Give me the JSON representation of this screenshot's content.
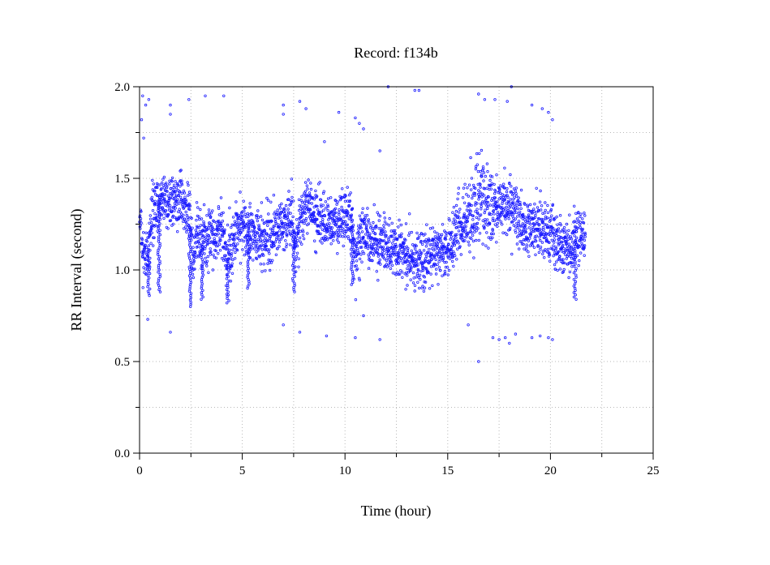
{
  "chart_data": {
    "type": "scatter",
    "title": "Record:  f134b",
    "xlabel": "Time (hour)",
    "ylabel": "RR Interval (second)",
    "xlim": [
      0,
      25
    ],
    "ylim": [
      0.0,
      2.0
    ],
    "x_ticks": [
      "0",
      "5",
      "10",
      "15",
      "20",
      "25"
    ],
    "y_ticks": [
      "0.0",
      "0.5",
      "1.0",
      "1.5",
      "2.0"
    ],
    "grid": true,
    "marker": "open-circle",
    "series_color": "#1a1aff",
    "profile": [
      [
        0.0,
        1.28
      ],
      [
        0.2,
        1.08
      ],
      [
        0.4,
        1.05
      ],
      [
        0.6,
        1.3
      ],
      [
        0.9,
        1.36
      ],
      [
        1.3,
        1.38
      ],
      [
        1.7,
        1.38
      ],
      [
        2.1,
        1.38
      ],
      [
        2.4,
        1.32
      ],
      [
        2.6,
        1.05
      ],
      [
        2.8,
        1.22
      ],
      [
        3.0,
        1.12
      ],
      [
        3.2,
        1.18
      ],
      [
        3.6,
        1.2
      ],
      [
        4.0,
        1.2
      ],
      [
        4.3,
        1.05
      ],
      [
        4.6,
        1.18
      ],
      [
        5.0,
        1.25
      ],
      [
        5.4,
        1.22
      ],
      [
        5.8,
        1.15
      ],
      [
        6.2,
        1.18
      ],
      [
        6.6,
        1.22
      ],
      [
        7.0,
        1.25
      ],
      [
        7.4,
        1.3
      ],
      [
        7.6,
        1.12
      ],
      [
        7.8,
        1.25
      ],
      [
        8.0,
        1.32
      ],
      [
        8.4,
        1.3
      ],
      [
        8.8,
        1.28
      ],
      [
        9.2,
        1.26
      ],
      [
        9.6,
        1.26
      ],
      [
        10.0,
        1.3
      ],
      [
        10.3,
        1.3
      ],
      [
        10.5,
        1.08
      ],
      [
        10.8,
        1.2
      ],
      [
        11.2,
        1.18
      ],
      [
        11.6,
        1.15
      ],
      [
        12.0,
        1.12
      ],
      [
        12.5,
        1.1
      ],
      [
        13.0,
        1.07
      ],
      [
        13.5,
        1.05
      ],
      [
        14.0,
        1.08
      ],
      [
        14.5,
        1.1
      ],
      [
        15.0,
        1.12
      ],
      [
        15.2,
        1.18
      ],
      [
        15.5,
        1.22
      ],
      [
        15.8,
        1.25
      ],
      [
        16.2,
        1.32
      ],
      [
        16.6,
        1.42
      ],
      [
        16.9,
        1.38
      ],
      [
        17.2,
        1.32
      ],
      [
        17.6,
        1.35
      ],
      [
        18.0,
        1.32
      ],
      [
        18.3,
        1.3
      ],
      [
        18.6,
        1.22
      ],
      [
        18.9,
        1.25
      ],
      [
        19.3,
        1.25
      ],
      [
        19.7,
        1.22
      ],
      [
        20.0,
        1.22
      ],
      [
        20.3,
        1.15
      ],
      [
        20.7,
        1.12
      ],
      [
        21.0,
        1.1
      ],
      [
        21.3,
        1.18
      ],
      [
        21.7,
        1.18
      ]
    ],
    "outliers": [
      [
        0.15,
        1.95
      ],
      [
        0.3,
        1.9
      ],
      [
        0.45,
        1.93
      ],
      [
        0.1,
        1.82
      ],
      [
        0.2,
        1.72
      ],
      [
        1.5,
        1.9
      ],
      [
        1.5,
        1.85
      ],
      [
        2.4,
        1.93
      ],
      [
        3.2,
        1.95
      ],
      [
        4.1,
        1.95
      ],
      [
        7.0,
        1.9
      ],
      [
        7.0,
        1.85
      ],
      [
        7.8,
        1.92
      ],
      [
        8.1,
        1.88
      ],
      [
        9.0,
        1.7
      ],
      [
        9.7,
        1.86
      ],
      [
        10.5,
        1.83
      ],
      [
        10.7,
        1.8
      ],
      [
        10.9,
        1.77
      ],
      [
        12.1,
        2.0
      ],
      [
        13.4,
        1.98
      ],
      [
        13.6,
        1.98
      ],
      [
        11.7,
        1.65
      ],
      [
        16.5,
        1.96
      ],
      [
        16.8,
        1.93
      ],
      [
        17.3,
        1.93
      ],
      [
        17.9,
        1.92
      ],
      [
        18.1,
        2.0
      ],
      [
        19.1,
        1.9
      ],
      [
        19.6,
        1.88
      ],
      [
        19.9,
        1.86
      ],
      [
        20.1,
        1.82
      ],
      [
        0.4,
        0.73
      ],
      [
        1.5,
        0.66
      ],
      [
        7.0,
        0.7
      ],
      [
        7.8,
        0.66
      ],
      [
        9.1,
        0.64
      ],
      [
        10.5,
        0.63
      ],
      [
        10.9,
        0.75
      ],
      [
        11.7,
        0.62
      ],
      [
        16.0,
        0.7
      ],
      [
        16.5,
        0.5
      ],
      [
        17.2,
        0.63
      ],
      [
        17.5,
        0.62
      ],
      [
        17.8,
        0.63
      ],
      [
        18.0,
        0.6
      ],
      [
        18.3,
        0.65
      ],
      [
        19.1,
        0.63
      ],
      [
        19.5,
        0.64
      ],
      [
        19.9,
        0.63
      ],
      [
        20.1,
        0.62
      ]
    ]
  }
}
